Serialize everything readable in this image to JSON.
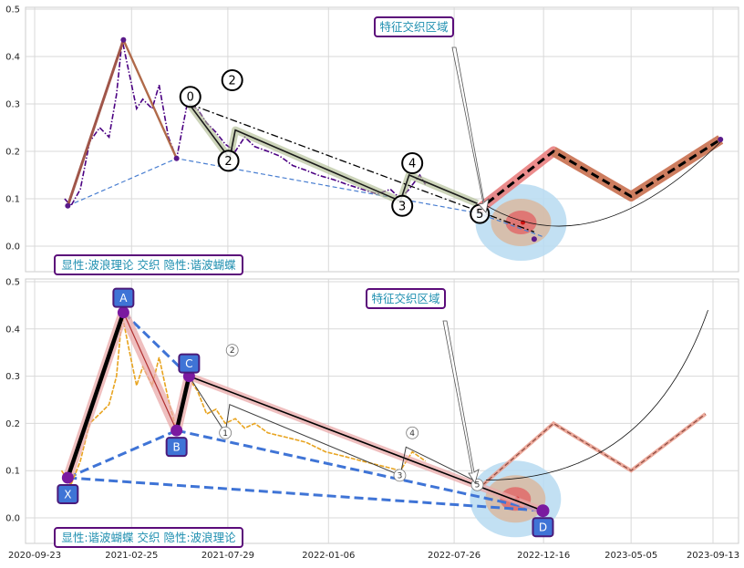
{
  "chart_data": [
    {
      "type": "line",
      "panel": "top",
      "ylim": [
        -0.02,
        0.5
      ],
      "yticks": [
        "0.0",
        "0.1",
        "0.2",
        "0.3",
        "0.4",
        "0.5"
      ],
      "annotation_title": "特征交织区域",
      "annotation_footer": "显性:波浪理论 交织 隐性:谐波蝴蝶",
      "wave_labels": [
        "0",
        "2",
        "4",
        "5",
        "2",
        "3"
      ],
      "price": [
        [
          "2020-11-10",
          0.1
        ],
        [
          "2020-11-20",
          0.085
        ],
        [
          "2020-12-05",
          0.12
        ],
        [
          "2020-12-20",
          0.22
        ],
        [
          "2021-01-05",
          0.25
        ],
        [
          "2021-01-20",
          0.23
        ],
        [
          "2021-02-01",
          0.32
        ],
        [
          "2021-02-10",
          0.435
        ],
        [
          "2021-02-22",
          0.36
        ],
        [
          "2021-03-05",
          0.29
        ],
        [
          "2021-03-15",
          0.31
        ],
        [
          "2021-03-30",
          0.29
        ],
        [
          "2021-04-10",
          0.34
        ],
        [
          "2021-04-25",
          0.23
        ],
        [
          "2021-05-08",
          0.185
        ],
        [
          "2021-05-25",
          0.3
        ],
        [
          "2021-06-10",
          0.29
        ],
        [
          "2021-06-25",
          0.26
        ],
        [
          "2021-07-10",
          0.24
        ],
        [
          "2021-07-25",
          0.215
        ],
        [
          "2021-08-10",
          0.2
        ],
        [
          "2021-08-25",
          0.23
        ],
        [
          "2021-09-10",
          0.21
        ],
        [
          "2021-10-01",
          0.2
        ],
        [
          "2021-10-20",
          0.19
        ],
        [
          "2021-11-10",
          0.17
        ],
        [
          "2021-12-01",
          0.16
        ],
        [
          "2021-12-20",
          0.15
        ],
        [
          "2022-01-15",
          0.14
        ],
        [
          "2022-02-05",
          0.13
        ],
        [
          "2022-03-01",
          0.12
        ],
        [
          "2022-03-25",
          0.11
        ],
        [
          "2022-04-15",
          0.12
        ],
        [
          "2022-05-01",
          0.1
        ],
        [
          "2022-05-15",
          0.12
        ],
        [
          "2022-06-01",
          0.15
        ],
        [
          "2022-06-10",
          0.13
        ]
      ],
      "wave_path": [
        [
          "2020-11-15",
          0.085
        ],
        [
          "2021-02-12",
          0.435
        ],
        [
          "2021-05-08",
          0.185
        ],
        [
          "2021-05-28",
          0.3
        ],
        [
          "2021-08-01",
          0.185
        ],
        [
          "2021-08-10",
          0.245
        ],
        [
          "2022-05-01",
          0.095
        ],
        [
          "2022-05-15",
          0.15
        ],
        [
          "2022-09-01",
          0.09
        ]
      ],
      "dashdot": [
        [
          "2021-05-28",
          0.3
        ],
        [
          "2022-12-01",
          0.03
        ]
      ],
      "blue_dashed": [
        [
          "2020-11-15",
          0.085
        ],
        [
          "2021-05-08",
          0.185
        ],
        [
          "2022-09-01",
          0.07
        ],
        [
          "2022-12-15",
          0.02
        ]
      ],
      "projection": [
        [
          "2022-09-01",
          0.075
        ],
        [
          "2023-01-01",
          0.2
        ],
        [
          "2023-05-05",
          0.105
        ],
        [
          "2023-09-25",
          0.225
        ]
      ],
      "zone_center": [
        "2022-11-10",
        0.05
      ]
    },
    {
      "type": "line",
      "panel": "bottom",
      "ylim": [
        -0.05,
        0.5
      ],
      "yticks": [
        "0.0",
        "0.1",
        "0.2",
        "0.3",
        "0.4",
        "0.5"
      ],
      "xticks": [
        "2020-09-23",
        "2021-02-25",
        "2021-07-29",
        "2022-01-06",
        "2022-07-26",
        "2022-12-16",
        "2023-05-05",
        "2023-09-13"
      ],
      "annotation_title": "特征交织区域",
      "annotation_footer": "显性:谐波蝴蝶 交织 隐性:波浪理论",
      "xabcd_labels": [
        "X",
        "A",
        "B",
        "C",
        "D"
      ],
      "wave_labels": [
        "2",
        "1",
        "4",
        "3",
        "5"
      ],
      "price": [
        [
          "2020-11-05",
          0.1
        ],
        [
          "2020-11-20",
          0.07
        ],
        [
          "2020-12-05",
          0.12
        ],
        [
          "2020-12-20",
          0.2
        ],
        [
          "2021-01-05",
          0.22
        ],
        [
          "2021-01-20",
          0.24
        ],
        [
          "2021-02-01",
          0.3
        ],
        [
          "2021-02-10",
          0.43
        ],
        [
          "2021-02-22",
          0.35
        ],
        [
          "2021-03-05",
          0.28
        ],
        [
          "2021-03-15",
          0.32
        ],
        [
          "2021-03-30",
          0.28
        ],
        [
          "2021-04-10",
          0.34
        ],
        [
          "2021-04-25",
          0.25
        ],
        [
          "2021-05-08",
          0.185
        ],
        [
          "2021-05-25",
          0.3
        ],
        [
          "2021-06-10",
          0.27
        ],
        [
          "2021-06-25",
          0.22
        ],
        [
          "2021-07-10",
          0.23
        ],
        [
          "2021-07-25",
          0.2
        ],
        [
          "2021-08-10",
          0.21
        ],
        [
          "2021-08-25",
          0.19
        ],
        [
          "2021-09-10",
          0.2
        ],
        [
          "2021-10-01",
          0.18
        ],
        [
          "2021-11-01",
          0.17
        ],
        [
          "2021-12-01",
          0.16
        ],
        [
          "2022-01-01",
          0.14
        ],
        [
          "2022-02-01",
          0.13
        ],
        [
          "2022-03-01",
          0.12
        ],
        [
          "2022-04-01",
          0.11
        ],
        [
          "2022-05-01",
          0.1
        ],
        [
          "2022-05-20",
          0.14
        ],
        [
          "2022-06-10",
          0.12
        ]
      ],
      "xabcd": [
        [
          "2020-11-15",
          0.085
        ],
        [
          "2021-02-12",
          0.435
        ],
        [
          "2021-05-08",
          0.185
        ],
        [
          "2021-05-28",
          0.3
        ],
        [
          "2022-12-15",
          0.015
        ]
      ],
      "wave_path": [
        [
          "2021-05-28",
          0.3
        ],
        [
          "2021-07-25",
          0.18
        ],
        [
          "2021-08-01",
          0.24
        ],
        [
          "2022-05-01",
          0.09
        ],
        [
          "2022-05-10",
          0.15
        ],
        [
          "2022-09-10",
          0.07
        ]
      ],
      "projection": [
        [
          "2022-09-10",
          0.07
        ],
        [
          "2023-01-01",
          0.2
        ],
        [
          "2023-05-05",
          0.1
        ],
        [
          "2023-09-01",
          0.22
        ]
      ],
      "zone_center": [
        "2022-11-01",
        0.04
      ]
    }
  ]
}
